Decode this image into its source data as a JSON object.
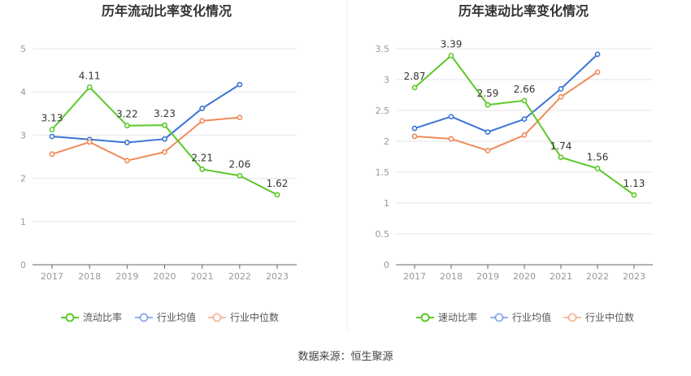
{
  "source": "数据来源：恒生聚源",
  "colors": {
    "series1": "#5cc929",
    "series2": "#3c74d6",
    "series3": "#ef8b5b",
    "grid": "#e4e6ee",
    "axis": "#666666",
    "tick": "#999999",
    "title": "#333333",
    "label": "#333333"
  },
  "chart_data": [
    {
      "type": "line",
      "title": "历年流动比率变化情况",
      "categories": [
        "2017",
        "2018",
        "2019",
        "2020",
        "2021",
        "2022",
        "2023"
      ],
      "ylim": [
        0,
        5
      ],
      "yticks": [
        "0",
        "1",
        "2",
        "3",
        "4",
        "5"
      ],
      "grid": true,
      "legend_position": "bottom",
      "series": [
        {
          "name": "流动比率",
          "values": [
            3.13,
            4.11,
            3.22,
            3.23,
            2.21,
            2.06,
            1.62
          ],
          "labels": [
            "3.13",
            "4.11",
            "3.22",
            "3.23",
            "2.21",
            "2.06",
            "1.62"
          ]
        },
        {
          "name": "行业均值",
          "values": [
            2.97,
            2.9,
            2.83,
            2.91,
            3.62,
            4.17,
            null
          ]
        },
        {
          "name": "行业中位数",
          "values": [
            2.56,
            2.84,
            2.41,
            2.61,
            3.33,
            3.41,
            null
          ]
        }
      ]
    },
    {
      "type": "line",
      "title": "历年速动比率变化情况",
      "categories": [
        "2017",
        "2018",
        "2019",
        "2020",
        "2021",
        "2022",
        "2023"
      ],
      "ylim": [
        0,
        3.5
      ],
      "yticks": [
        "0",
        "0.5",
        "1",
        "1.5",
        "2",
        "2.5",
        "3",
        "3.5"
      ],
      "grid": true,
      "legend_position": "bottom",
      "series": [
        {
          "name": "速动比率",
          "values": [
            2.87,
            3.39,
            2.59,
            2.66,
            1.74,
            1.56,
            1.13
          ],
          "labels": [
            "2.87",
            "3.39",
            "2.59",
            "2.66",
            "1.74",
            "1.56",
            "1.13"
          ]
        },
        {
          "name": "行业均值",
          "values": [
            2.21,
            2.4,
            2.15,
            2.36,
            2.85,
            3.41,
            null
          ]
        },
        {
          "name": "行业中位数",
          "values": [
            2.08,
            2.04,
            1.85,
            2.1,
            2.72,
            3.12,
            null
          ]
        }
      ]
    }
  ]
}
